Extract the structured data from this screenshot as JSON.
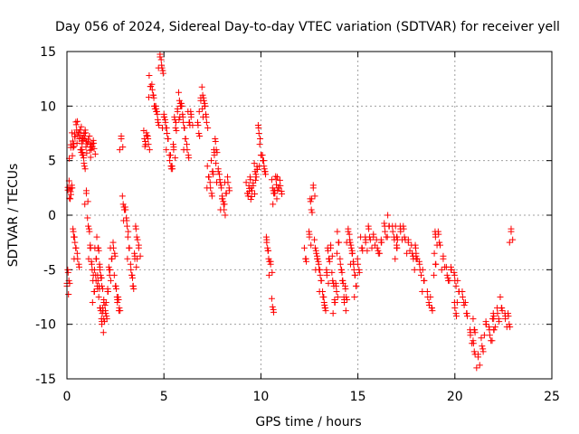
{
  "chart_data": {
    "type": "scatter",
    "title": "Day 056 of 2024, Sidereal Day-to-day VTEC variation (SDTVAR) for receiver yell",
    "xlabel": "GPS time / hours",
    "ylabel": "SDTVAR / TECUs",
    "xlim": [
      0,
      25
    ],
    "ylim": [
      -15,
      15
    ],
    "xticks": [
      0,
      5,
      10,
      15,
      20,
      25
    ],
    "yticks": [
      -15,
      -10,
      -5,
      0,
      5,
      10,
      15
    ],
    "xtick_labels": [
      "0",
      "5",
      "10",
      "15",
      "20",
      "25"
    ],
    "ytick_labels": [
      "-15",
      "-10",
      "-5",
      "0",
      "5",
      "10",
      "15"
    ],
    "grid": true,
    "marker": "+",
    "color": "#ff0000",
    "series": [
      {
        "name": "SDTVAR",
        "x": [
          0.0,
          0.1,
          0.2,
          0.3,
          0.4,
          0.5,
          0.6,
          0.7,
          0.8,
          0.9,
          1.0,
          1.1,
          1.2,
          1.3,
          1.4,
          1.5,
          1.6,
          1.7,
          1.8,
          1.9,
          0.05,
          0.15,
          0.25,
          0.35,
          0.45,
          0.55,
          0.7,
          0.8,
          0.9,
          1.0,
          1.1,
          1.2,
          1.3,
          1.4,
          1.5,
          1.6,
          1.7,
          1.8,
          1.9,
          2.0,
          2.1,
          2.2,
          2.3,
          2.4,
          2.5,
          2.6,
          2.7,
          2.8,
          2.9,
          3.0,
          3.1,
          3.2,
          3.3,
          3.4,
          3.5,
          3.6,
          3.7,
          4.0,
          4.1,
          4.2,
          4.3,
          4.4,
          4.5,
          4.6,
          4.7,
          4.8,
          4.9,
          5.0,
          5.1,
          5.2,
          5.3,
          5.4,
          5.5,
          5.6,
          5.7,
          5.8,
          5.9,
          6.0,
          6.1,
          6.2,
          6.3,
          6.4,
          6.8,
          6.9,
          7.0,
          7.1,
          7.2,
          7.3,
          7.4,
          7.5,
          7.6,
          7.7,
          7.8,
          7.9,
          8.0,
          8.1,
          8.2,
          8.3,
          9.3,
          9.4,
          9.5,
          9.6,
          9.7,
          9.8,
          9.9,
          10.0,
          10.1,
          10.2,
          10.3,
          10.4,
          10.5,
          10.6,
          10.7,
          10.8,
          10.9,
          11.0,
          12.3,
          12.5,
          12.6,
          12.7,
          12.8,
          12.9,
          13.0,
          13.1,
          13.2,
          13.3,
          13.4,
          13.5,
          13.6,
          13.7,
          13.8,
          13.9,
          14.0,
          14.1,
          14.2,
          14.3,
          14.4,
          14.5,
          14.6,
          14.7,
          14.8,
          14.9,
          15.0,
          15.2,
          15.4,
          15.6,
          15.8,
          16.0,
          16.2,
          16.4,
          16.6,
          16.8,
          17.0,
          17.2,
          17.4,
          17.6,
          17.8,
          18.0,
          18.2,
          18.4,
          18.6,
          18.8,
          19.0,
          19.2,
          19.4,
          19.6,
          19.8,
          20.0,
          20.2,
          20.4,
          20.6,
          20.8,
          21.0,
          21.2,
          21.4,
          21.6,
          21.8,
          22.0,
          22.2,
          22.4,
          22.6,
          22.8,
          22.9,
          10.6,
          17.0,
          18.0,
          19.0,
          20.0,
          21.0,
          22.0
        ],
        "y": [
          -6.5,
          -6.0,
          6.2,
          6.8,
          7.2,
          7.8,
          7.6,
          7.3,
          7.1,
          7.0,
          6.8,
          6.7,
          6.5,
          6.3,
          6.1,
          -4.0,
          -6.0,
          -8.5,
          -10.0,
          -9.5,
          2.3,
          2.4,
          2.5,
          -2.0,
          -3.0,
          -4.0,
          6.0,
          5.5,
          4.5,
          2.0,
          -1.0,
          -3.0,
          -5.0,
          -7.0,
          -6.0,
          -3.0,
          -5.0,
          -6.5,
          -8.0,
          -9.0,
          -7.0,
          -5.5,
          -4.0,
          -3.0,
          -6.5,
          -8.0,
          -8.5,
          7.0,
          1.0,
          0.5,
          -1.0,
          -3.0,
          -5.0,
          -6.5,
          -4.0,
          -2.0,
          -3.0,
          7.0,
          7.3,
          6.5,
          11.8,
          11.5,
          10.0,
          9.5,
          8.5,
          14.5,
          13.5,
          9.0,
          8.0,
          7.0,
          5.0,
          4.5,
          6.0,
          8.0,
          9.5,
          10.5,
          10.0,
          8.5,
          7.0,
          6.0,
          8.5,
          9.0,
          7.5,
          10.5,
          11.0,
          10.0,
          8.5,
          3.5,
          2.5,
          4.0,
          5.5,
          6.0,
          4.0,
          3.0,
          1.5,
          0.5,
          2.0,
          3.0,
          2.0,
          2.2,
          2.5,
          2.7,
          4.0,
          4.2,
          7.5,
          5.5,
          5.0,
          4.0,
          -2.5,
          -4.0,
          -4.5,
          2.5,
          2.0,
          2.8,
          2.5,
          2.7,
          -4.0,
          -2.0,
          0.5,
          2.5,
          -3.0,
          -4.0,
          -5.0,
          -6.0,
          -7.5,
          -8.5,
          -5.5,
          -4.0,
          -3.0,
          -6.0,
          -8.0,
          -7.0,
          -2.5,
          -4.5,
          -6.0,
          -8.0,
          -7.5,
          -1.5,
          -2.5,
          -3.5,
          -5.0,
          -6.5,
          -4.5,
          -3.0,
          -2.5,
          -2.0,
          -2.0,
          -3.0,
          -2.5,
          -1.5,
          -1.0,
          -1.5,
          -2.0,
          -1.5,
          -2.0,
          -2.5,
          -3.5,
          -4.0,
          -5.0,
          -6.0,
          -7.5,
          -8.5,
          -2.0,
          -2.5,
          -4.0,
          -5.5,
          -5.0,
          -6.0,
          -7.0,
          -7.5,
          -9.0,
          -11.0,
          -12.5,
          -13.0,
          -12.0,
          -10.0,
          -11.0,
          -10.5,
          -9.0,
          -8.5,
          -9.5,
          -10.0,
          -1.5,
          -8.4,
          -3.0,
          -3.5,
          -4.5,
          -8.5,
          -10.5,
          -9.5
        ]
      }
    ]
  }
}
